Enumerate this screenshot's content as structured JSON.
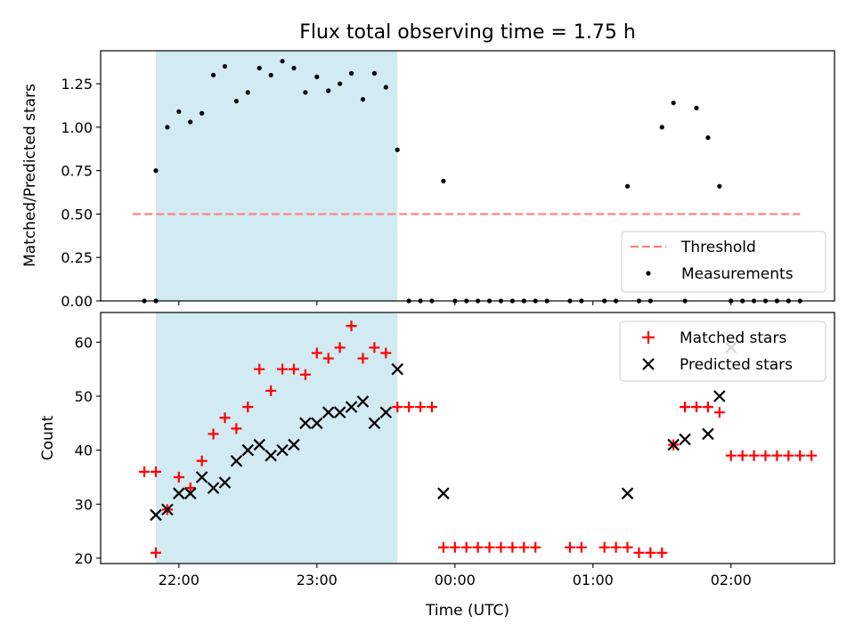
{
  "title": "Flux total observing time = 1.75 h",
  "xlabel": "Time (UTC)",
  "colors": {
    "shade": "#add8e6",
    "threshold": "#ff7f7f",
    "matched": "#ff0000",
    "predicted": "#000000",
    "measurement": "#000000"
  },
  "chart_data": [
    {
      "type": "scatter",
      "ylabel": "Matched/Predicted stars",
      "ylim": [
        0,
        1.44
      ],
      "xlim": [
        "21:26",
        "02:45"
      ],
      "x_ticks": [
        "22:00",
        "23:00",
        "00:00",
        "01:00",
        "02:00"
      ],
      "y_ticks": [
        "0.00",
        "0.25",
        "0.50",
        "0.75",
        "1.00",
        "1.25"
      ],
      "shaded_interval": [
        "21:50",
        "23:35"
      ],
      "legend_position": "lower right",
      "threshold": {
        "name": "Threshold",
        "value": 0.5,
        "x": [
          "21:40",
          "02:30"
        ]
      },
      "measurements": {
        "name": "Measurements",
        "points": [
          [
            "21:45",
            0
          ],
          [
            "21:50",
            0
          ],
          [
            "21:50",
            0.75
          ],
          [
            "21:55",
            1.0
          ],
          [
            "22:00",
            1.09
          ],
          [
            "22:05",
            1.03
          ],
          [
            "22:10",
            1.08
          ],
          [
            "22:15",
            1.3
          ],
          [
            "22:20",
            1.35
          ],
          [
            "22:25",
            1.15
          ],
          [
            "22:30",
            1.2
          ],
          [
            "22:35",
            1.34
          ],
          [
            "22:40",
            1.3
          ],
          [
            "22:45",
            1.38
          ],
          [
            "22:50",
            1.34
          ],
          [
            "22:55",
            1.2
          ],
          [
            "23:00",
            1.29
          ],
          [
            "23:05",
            1.21
          ],
          [
            "23:10",
            1.25
          ],
          [
            "23:15",
            1.31
          ],
          [
            "23:20",
            1.16
          ],
          [
            "23:25",
            1.31
          ],
          [
            "23:30",
            1.23
          ],
          [
            "23:35",
            0.87
          ],
          [
            "23:40",
            0
          ],
          [
            "23:45",
            0
          ],
          [
            "23:50",
            0
          ],
          [
            "23:55",
            0.69
          ],
          [
            "00:00",
            0
          ],
          [
            "00:05",
            0
          ],
          [
            "00:10",
            0
          ],
          [
            "00:15",
            0
          ],
          [
            "00:20",
            0
          ],
          [
            "00:25",
            0
          ],
          [
            "00:30",
            0
          ],
          [
            "00:35",
            0
          ],
          [
            "00:40",
            0
          ],
          [
            "00:50",
            0
          ],
          [
            "00:55",
            0
          ],
          [
            "01:05",
            0
          ],
          [
            "01:10",
            0
          ],
          [
            "01:15",
            0.66
          ],
          [
            "01:20",
            0
          ],
          [
            "01:25",
            0
          ],
          [
            "01:30",
            1.0
          ],
          [
            "01:35",
            1.14
          ],
          [
            "01:40",
            0
          ],
          [
            "01:45",
            1.11
          ],
          [
            "01:50",
            0.94
          ],
          [
            "01:55",
            0.66
          ],
          [
            "02:00",
            0
          ],
          [
            "02:05",
            0
          ],
          [
            "02:10",
            0
          ],
          [
            "02:15",
            0
          ],
          [
            "02:20",
            0
          ],
          [
            "02:25",
            0
          ],
          [
            "02:30",
            0
          ]
        ]
      }
    },
    {
      "type": "scatter",
      "ylabel": "Count",
      "ylim": [
        19,
        65.5
      ],
      "xlim": [
        "21:26",
        "02:45"
      ],
      "x_ticks": [
        "22:00",
        "23:00",
        "00:00",
        "01:00",
        "02:00"
      ],
      "y_ticks": [
        "20",
        "30",
        "40",
        "50",
        "60"
      ],
      "shaded_interval": [
        "21:50",
        "23:35"
      ],
      "legend_position": "upper right",
      "series": [
        {
          "name": "Matched stars",
          "marker": "plus",
          "points": [
            [
              "21:45",
              36
            ],
            [
              "21:50",
              36
            ],
            [
              "21:50",
              21
            ],
            [
              "21:55",
              29
            ],
            [
              "22:00",
              35
            ],
            [
              "22:05",
              33
            ],
            [
              "22:10",
              38
            ],
            [
              "22:15",
              43
            ],
            [
              "22:20",
              46
            ],
            [
              "22:25",
              44
            ],
            [
              "22:30",
              48
            ],
            [
              "22:35",
              55
            ],
            [
              "22:40",
              51
            ],
            [
              "22:45",
              55
            ],
            [
              "22:50",
              55
            ],
            [
              "22:55",
              54
            ],
            [
              "23:00",
              58
            ],
            [
              "23:05",
              57
            ],
            [
              "23:10",
              59
            ],
            [
              "23:15",
              63
            ],
            [
              "23:20",
              57
            ],
            [
              "23:25",
              59
            ],
            [
              "23:30",
              58
            ],
            [
              "23:35",
              48
            ],
            [
              "23:40",
              48
            ],
            [
              "23:45",
              48
            ],
            [
              "23:50",
              48
            ],
            [
              "23:55",
              22
            ],
            [
              "00:00",
              22
            ],
            [
              "00:05",
              22
            ],
            [
              "00:10",
              22
            ],
            [
              "00:15",
              22
            ],
            [
              "00:20",
              22
            ],
            [
              "00:25",
              22
            ],
            [
              "00:30",
              22
            ],
            [
              "00:35",
              22
            ],
            [
              "00:50",
              22
            ],
            [
              "00:55",
              22
            ],
            [
              "01:05",
              22
            ],
            [
              "01:10",
              22
            ],
            [
              "01:15",
              22
            ],
            [
              "01:20",
              21
            ],
            [
              "01:25",
              21
            ],
            [
              "01:30",
              21
            ],
            [
              "01:35",
              41
            ],
            [
              "01:40",
              48
            ],
            [
              "01:45",
              48
            ],
            [
              "01:50",
              48
            ],
            [
              "01:55",
              47
            ],
            [
              "02:00",
              39
            ],
            [
              "02:05",
              39
            ],
            [
              "02:10",
              39
            ],
            [
              "02:15",
              39
            ],
            [
              "02:20",
              39
            ],
            [
              "02:25",
              39
            ],
            [
              "02:30",
              39
            ],
            [
              "02:35",
              39
            ]
          ]
        },
        {
          "name": "Predicted stars",
          "marker": "x",
          "points": [
            [
              "21:50",
              28
            ],
            [
              "21:55",
              29
            ],
            [
              "22:00",
              32
            ],
            [
              "22:05",
              32
            ],
            [
              "22:10",
              35
            ],
            [
              "22:15",
              33
            ],
            [
              "22:20",
              34
            ],
            [
              "22:25",
              38
            ],
            [
              "22:30",
              40
            ],
            [
              "22:35",
              41
            ],
            [
              "22:40",
              39
            ],
            [
              "22:45",
              40
            ],
            [
              "22:50",
              41
            ],
            [
              "22:55",
              45
            ],
            [
              "23:00",
              45
            ],
            [
              "23:05",
              47
            ],
            [
              "23:10",
              47
            ],
            [
              "23:15",
              48
            ],
            [
              "23:20",
              49
            ],
            [
              "23:25",
              45
            ],
            [
              "23:30",
              47
            ],
            [
              "23:35",
              55
            ],
            [
              "23:55",
              32
            ],
            [
              "01:15",
              32
            ],
            [
              "01:35",
              41
            ],
            [
              "01:40",
              42
            ],
            [
              "01:50",
              43
            ],
            [
              "01:55",
              50
            ],
            [
              "02:00",
              59
            ]
          ]
        }
      ]
    }
  ]
}
